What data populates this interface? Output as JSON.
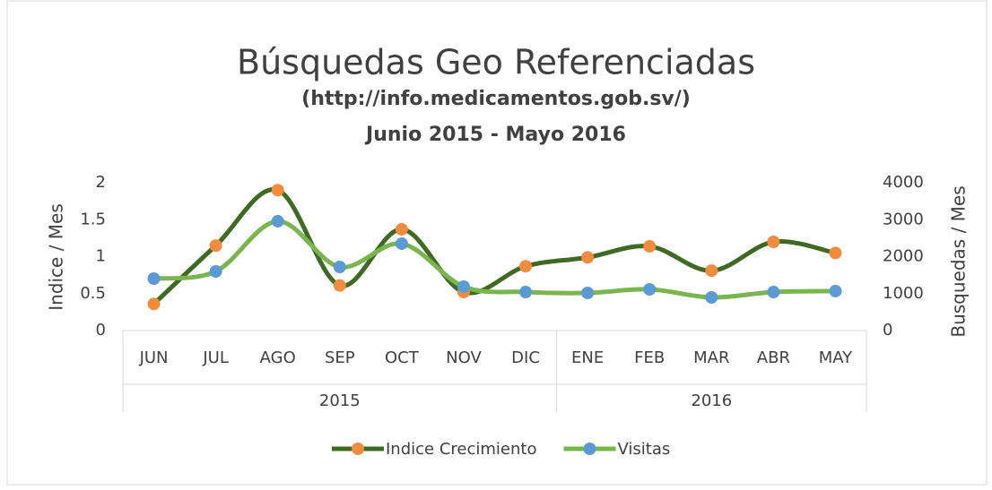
{
  "chart_data": {
    "type": "line",
    "title": "Búsquedas Geo Referenciadas",
    "subtitle": "(http://info.medicamentos.gob.sv/)",
    "subtitle2": "Junio 2015 - Mayo 2016",
    "y_label": "Indice / Mes",
    "y2_label": "Busquedas /  Mes",
    "categories": [
      "JUN",
      "JUL",
      "AGO",
      "SEP",
      "OCT",
      "NOV",
      "DIC",
      "ENE",
      "FEB",
      "MAR",
      "ABR",
      "MAY"
    ],
    "x_groups": [
      {
        "label": "2015",
        "count": 7
      },
      {
        "label": "2016",
        "count": 5
      }
    ],
    "ylim": [
      0,
      2
    ],
    "yticks": [
      0,
      0.5,
      1,
      1.5,
      2
    ],
    "y2lim": [
      0,
      4000
    ],
    "y2ticks": [
      0,
      1000,
      2000,
      3000,
      4000
    ],
    "legend": "bottom",
    "series": [
      {
        "name": "Indice Crecimiento",
        "color": "#3f6a24",
        "marker_color": "#f08c3c",
        "axis": "y",
        "values": [
          0.36,
          1.15,
          1.9,
          0.61,
          1.37,
          0.52,
          0.87,
          0.99,
          1.14,
          0.81,
          1.2,
          1.05
        ]
      },
      {
        "name": "Visitas",
        "color": "#7ab64e",
        "marker_color": "#5b9bd5",
        "axis": "y2",
        "values": [
          1406,
          1600,
          2958,
          1721,
          2352,
          1188,
          1042,
          1018,
          1115,
          897,
          1042,
          1067
        ]
      }
    ]
  }
}
